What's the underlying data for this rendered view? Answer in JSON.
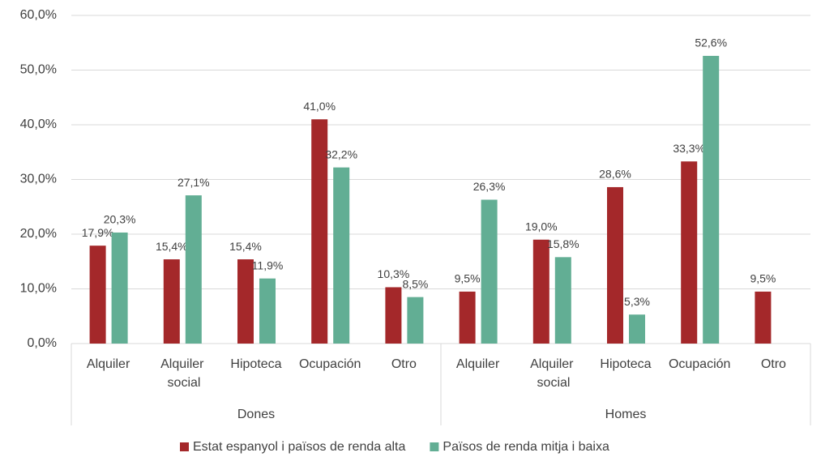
{
  "chart_data": {
    "type": "bar",
    "categories": [
      "Alquiler",
      "Alquiler social",
      "Hipoteca",
      "Ocupación",
      "Otro",
      "Alquiler",
      "Alquiler social",
      "Hipoteca",
      "Ocupación",
      "Otro"
    ],
    "category_groups": [
      "Dones",
      "Homes"
    ],
    "series": [
      {
        "name": "Estat espanyol i països de renda alta",
        "color": "#a4282a",
        "values": [
          17.9,
          15.4,
          15.4,
          41.0,
          10.3,
          9.5,
          19.0,
          28.6,
          33.3,
          9.5
        ],
        "value_labels": [
          "17,9%",
          "15,4%",
          "15,4%",
          "41,0%",
          "10,3%",
          "9,5%",
          "19,0%",
          "28,6%",
          "33,3%",
          "9,5%"
        ]
      },
      {
        "name": "Països de renda mitja i baixa",
        "color": "#62ae94",
        "values": [
          20.3,
          27.1,
          11.9,
          32.2,
          8.5,
          26.3,
          15.8,
          5.3,
          52.6,
          null
        ],
        "value_labels": [
          "20,3%",
          "27,1%",
          "11,9%",
          "32,2%",
          "8,5%",
          "26,3%",
          "15,8%",
          "5,3%",
          "52,6%",
          null
        ]
      }
    ],
    "ylim": [
      0,
      60
    ],
    "yticks": [
      {
        "value": 0,
        "label": "0,0%"
      },
      {
        "value": 10,
        "label": "10,0%"
      },
      {
        "value": 20,
        "label": "20,0%"
      },
      {
        "value": 30,
        "label": "30,0%"
      },
      {
        "value": 40,
        "label": "40,0%"
      },
      {
        "value": 50,
        "label": "50,0%"
      },
      {
        "value": 60,
        "label": "60,0%"
      }
    ],
    "grid": true,
    "legend": "bottom"
  }
}
